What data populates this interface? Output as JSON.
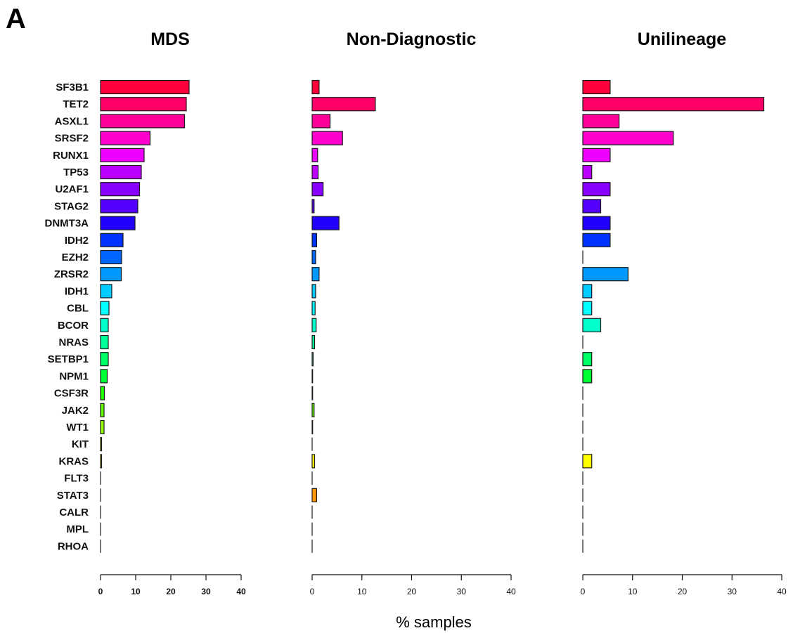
{
  "panel_label": "A",
  "chart_data": {
    "type": "bar",
    "orientation": "horizontal",
    "xlabel": "% samples",
    "categories": [
      "SF3B1",
      "TET2",
      "ASXL1",
      "SRSF2",
      "RUNX1",
      "TP53",
      "U2AF1",
      "STAG2",
      "DNMT3A",
      "IDH2",
      "EZH2",
      "ZRSR2",
      "IDH1",
      "CBL",
      "BCOR",
      "NRAS",
      "SETBP1",
      "NPM1",
      "CSF3R",
      "JAK2",
      "WT1",
      "KIT",
      "KRAS",
      "FLT3",
      "STAT3",
      "CALR",
      "MPL",
      "RHOA"
    ],
    "colors": [
      "#ff003c",
      "#ff0066",
      "#ff0099",
      "#ff00cc",
      "#ee00ff",
      "#bb00ff",
      "#8800ff",
      "#5500ff",
      "#2200ff",
      "#0033ff",
      "#0066ff",
      "#0099ff",
      "#00ccff",
      "#00ffff",
      "#00ffcc",
      "#00ff99",
      "#00ff66",
      "#00ff33",
      "#22ff00",
      "#66ff00",
      "#99ff00",
      "#ccff00",
      "#ffff00",
      "#ffcc00",
      "#ff9900",
      "#ff6600",
      "#ff3300",
      "#ff0000"
    ],
    "xlim": [
      0,
      40
    ],
    "ticks": [
      0,
      10,
      20,
      30,
      40
    ],
    "panels": [
      {
        "title": "MDS",
        "values": [
          25.2,
          24.4,
          23.9,
          14.1,
          12.4,
          11.6,
          11.1,
          10.6,
          9.8,
          6.4,
          6.0,
          5.9,
          3.2,
          2.4,
          2.2,
          2.2,
          2.2,
          1.9,
          1.1,
          1.0,
          1.0,
          0.3,
          0.3,
          0.0,
          0.0,
          0.0,
          0.0,
          0.0
        ]
      },
      {
        "title": "Non-Diagnostic",
        "values": [
          1.4,
          12.7,
          3.6,
          6.1,
          1.1,
          1.2,
          2.2,
          0.4,
          5.4,
          0.9,
          0.7,
          1.4,
          0.7,
          0.6,
          0.8,
          0.5,
          0.2,
          0.1,
          0.1,
          0.4,
          0.1,
          0.0,
          0.5,
          0.0,
          0.9,
          0.0,
          0.0,
          0.0
        ]
      },
      {
        "title": "Unilineage",
        "values": [
          5.5,
          36.4,
          7.3,
          18.2,
          5.5,
          1.8,
          5.5,
          3.6,
          5.5,
          5.5,
          0.0,
          9.1,
          1.8,
          1.8,
          3.6,
          0.0,
          1.8,
          1.8,
          0.0,
          0.0,
          0.0,
          0.0,
          1.8,
          0.0,
          0.0,
          0.0,
          0.0,
          0.0
        ]
      }
    ]
  }
}
